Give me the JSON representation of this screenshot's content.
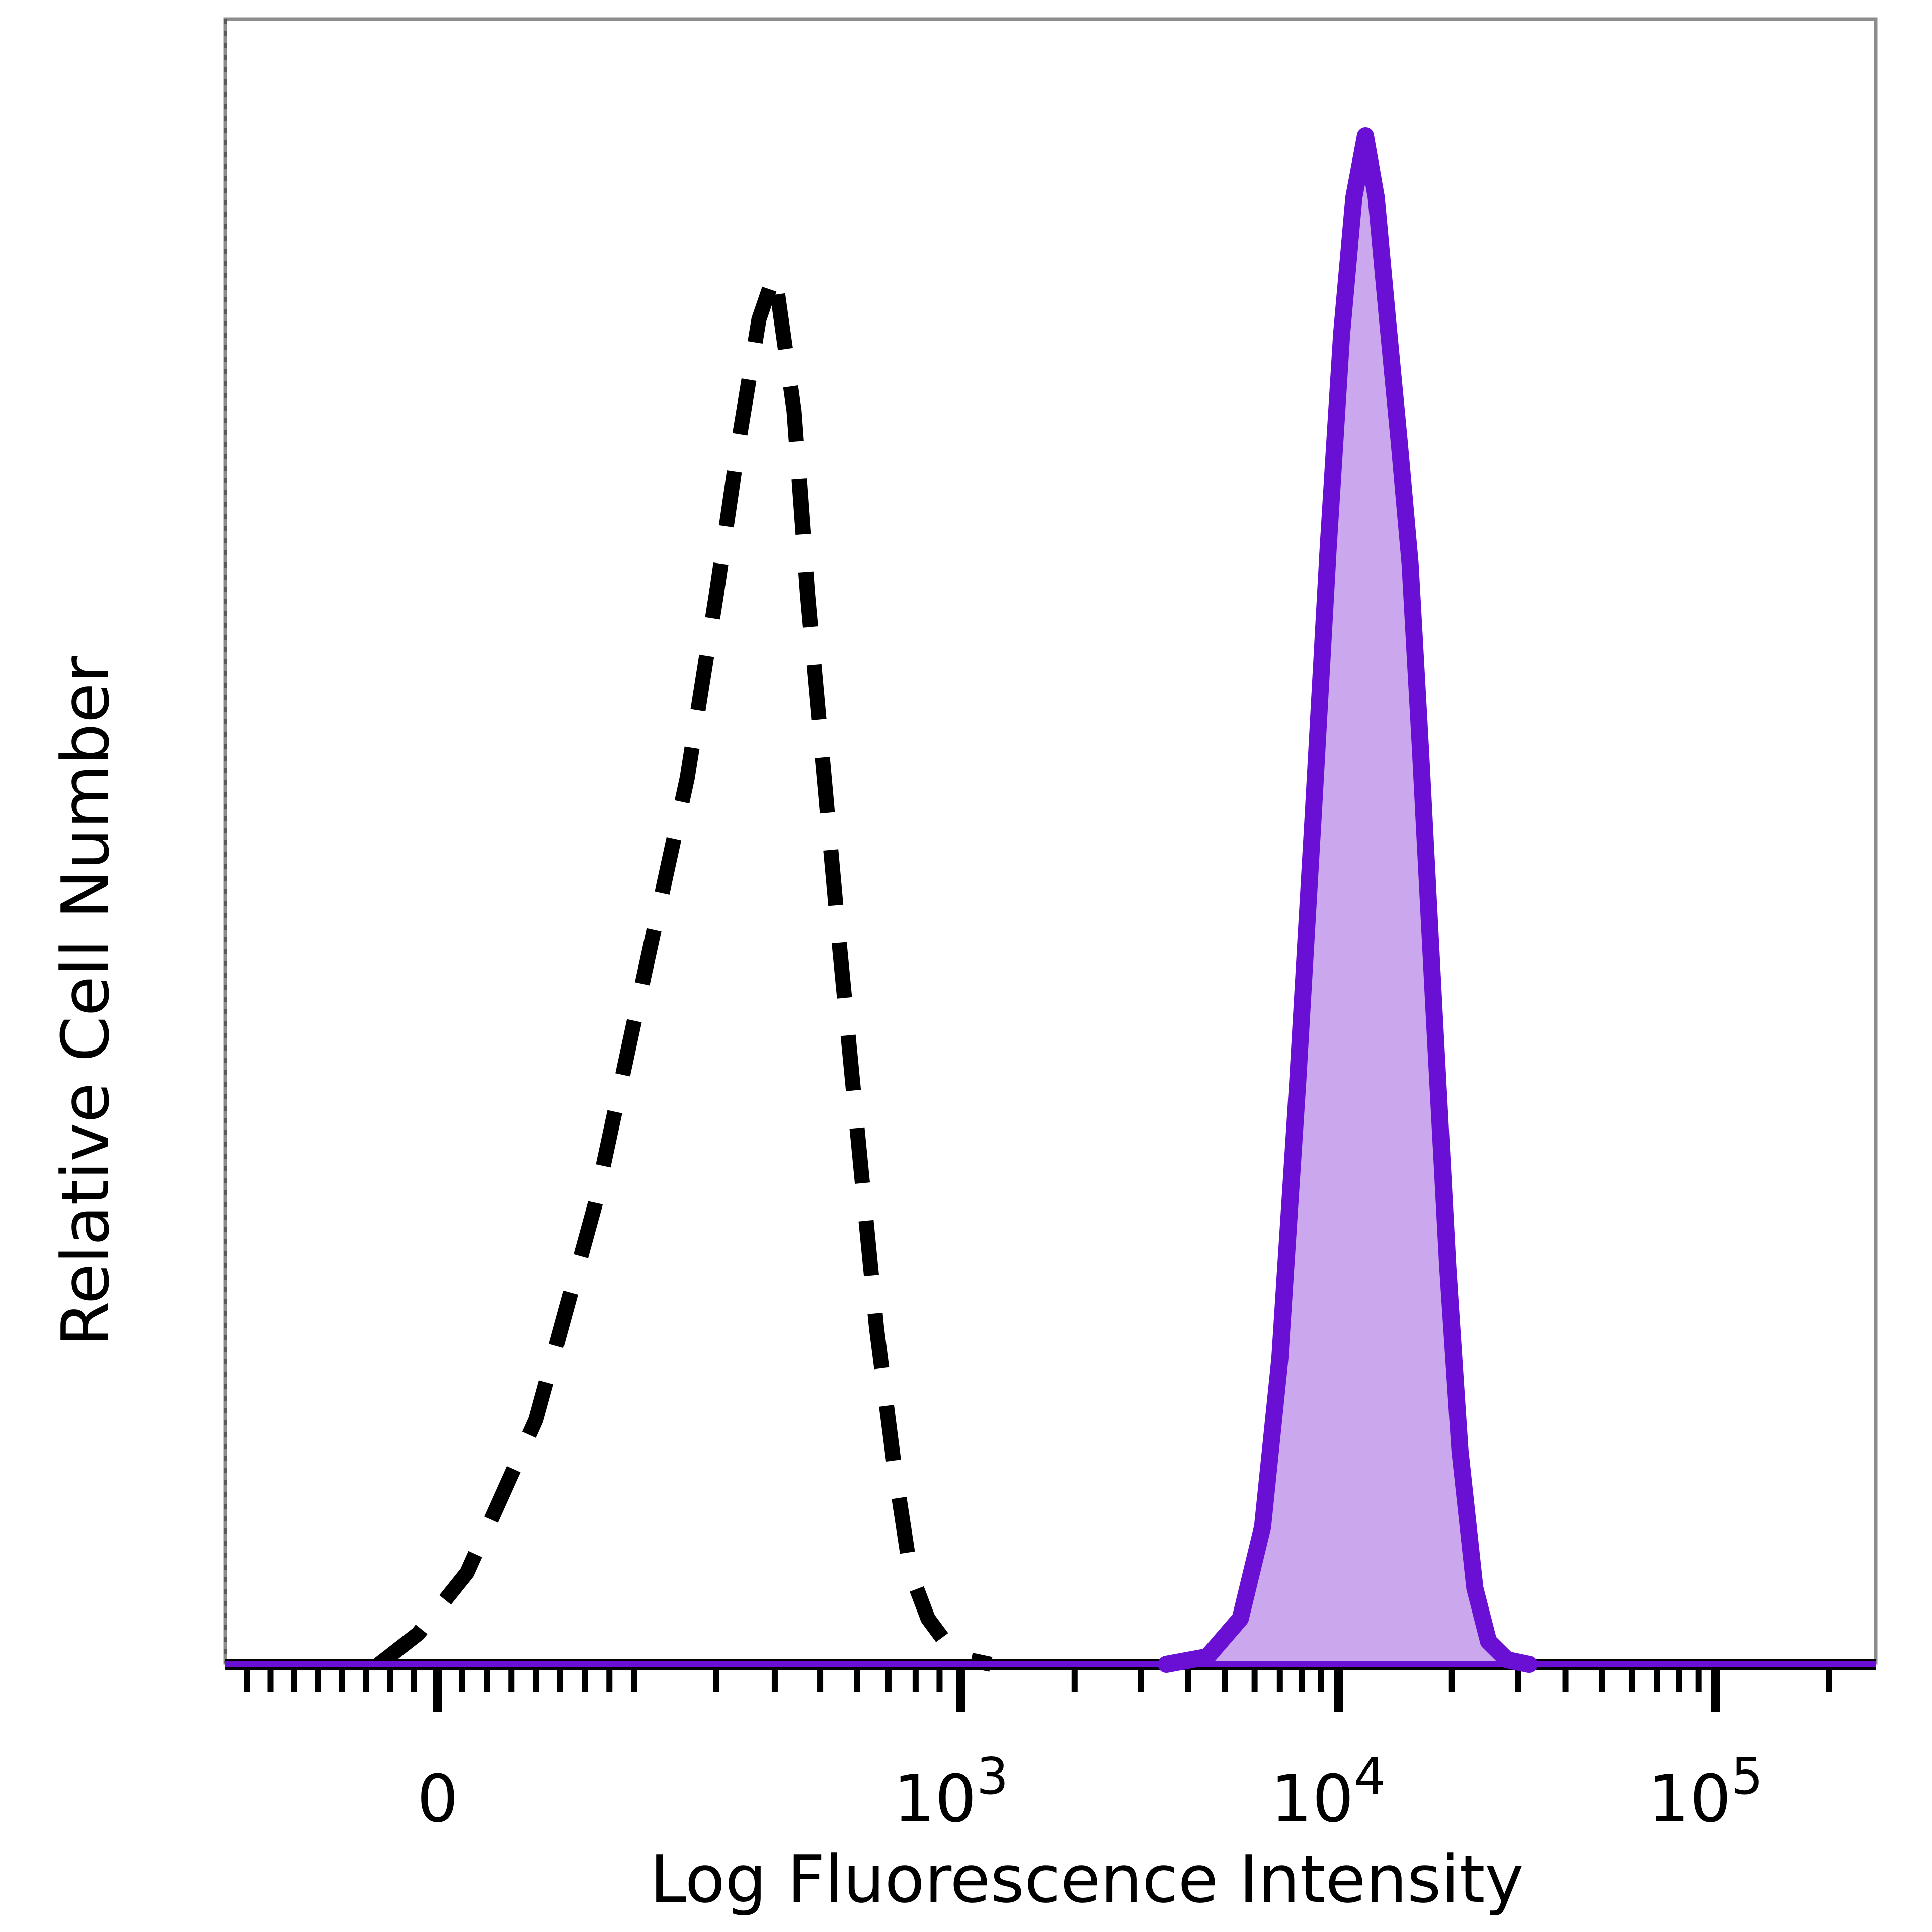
{
  "chart_data": {
    "type": "area",
    "xlabel": "Log Fluorescence Intensity",
    "ylabel": "Relative Cell Number",
    "x_scale": "biexponential",
    "grid": false,
    "legend": "none",
    "x_ticks": [
      {
        "value": 0,
        "base": "0",
        "exp": ""
      },
      {
        "value": 1000,
        "base": "10",
        "exp": "3"
      },
      {
        "value": 10000,
        "base": "10",
        "exp": "4"
      },
      {
        "value": 100000,
        "base": "10",
        "exp": "5"
      }
    ],
    "ylim": [
      0,
      100
    ],
    "series": [
      {
        "style": "dashed",
        "color": "#000000",
        "points": [
          [
            -60,
            0
          ],
          [
            -20,
            2
          ],
          [
            30,
            6
          ],
          [
            100,
            16
          ],
          [
            160,
            30
          ],
          [
            210,
            45
          ],
          [
            260,
            58
          ],
          [
            300,
            70
          ],
          [
            335,
            80
          ],
          [
            370,
            88
          ],
          [
            400,
            91
          ],
          [
            440,
            82
          ],
          [
            470,
            70
          ],
          [
            510,
            58
          ],
          [
            550,
            47
          ],
          [
            600,
            35
          ],
          [
            660,
            22
          ],
          [
            720,
            13
          ],
          [
            780,
            6
          ],
          [
            850,
            3
          ],
          [
            950,
            1
          ],
          [
            1050,
            0.3
          ],
          [
            1200,
            0
          ]
        ]
      },
      {
        "style": "filled",
        "color": "#6a0fd4",
        "fill": "#cba8ee",
        "points": [
          [
            3500,
            0
          ],
          [
            4500,
            0.5
          ],
          [
            5500,
            3
          ],
          [
            6300,
            9
          ],
          [
            7000,
            20
          ],
          [
            7800,
            38
          ],
          [
            8600,
            56
          ],
          [
            9400,
            73
          ],
          [
            10200,
            87
          ],
          [
            11000,
            96
          ],
          [
            11800,
            100
          ],
          [
            12600,
            96
          ],
          [
            13500,
            88
          ],
          [
            14500,
            80
          ],
          [
            15500,
            72
          ],
          [
            16500,
            60
          ],
          [
            18000,
            42
          ],
          [
            19500,
            26
          ],
          [
            21000,
            14
          ],
          [
            23000,
            5
          ],
          [
            25000,
            1.5
          ],
          [
            28000,
            0.3
          ],
          [
            32000,
            0
          ]
        ]
      }
    ]
  }
}
